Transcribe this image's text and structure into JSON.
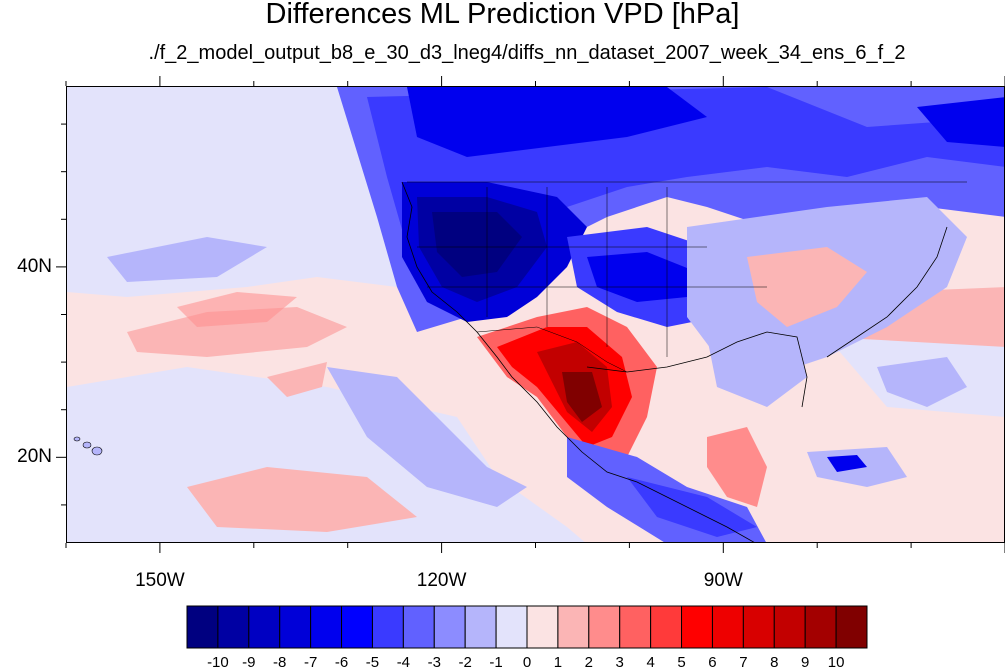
{
  "title": "Differences ML Prediction VPD [hPa]",
  "subtitle": "./f_2_model_output_b8_e_30_d3_lneg4/diffs_nn_dataset_2007_week_34_ens_6_f_2",
  "map": {
    "lat_labels": [
      {
        "text": "40N",
        "lat": 40
      },
      {
        "text": "20N",
        "lat": 20
      }
    ],
    "lon_labels": [
      {
        "text": "150W",
        "lon": -150
      },
      {
        "text": "120W",
        "lon": -120
      },
      {
        "text": "90W",
        "lon": -90
      }
    ],
    "lon_range": [
      -160,
      -60
    ],
    "lat_range": [
      11,
      59
    ],
    "background_color": "#fbe3e3"
  },
  "colorbar": {
    "labels": [
      "-10",
      "-9",
      "-8",
      "-7",
      "-6",
      "-5",
      "-4",
      "-3",
      "-2",
      "-1",
      "0",
      "1",
      "2",
      "3",
      "4",
      "5",
      "6",
      "7",
      "8",
      "9",
      "10"
    ],
    "colors": [
      "#000080",
      "#0000a3",
      "#0000c2",
      "#0000d8",
      "#0000ee",
      "#0000ff",
      "#3a3aff",
      "#6161ff",
      "#8c8cff",
      "#b5b5fb",
      "#e3e3fb",
      "#fbe3e3",
      "#fbb5b5",
      "#ff8c8c",
      "#ff6161",
      "#ff3a3a",
      "#ff0000",
      "#ee0000",
      "#d80000",
      "#c20000",
      "#a30000",
      "#800000"
    ]
  }
}
